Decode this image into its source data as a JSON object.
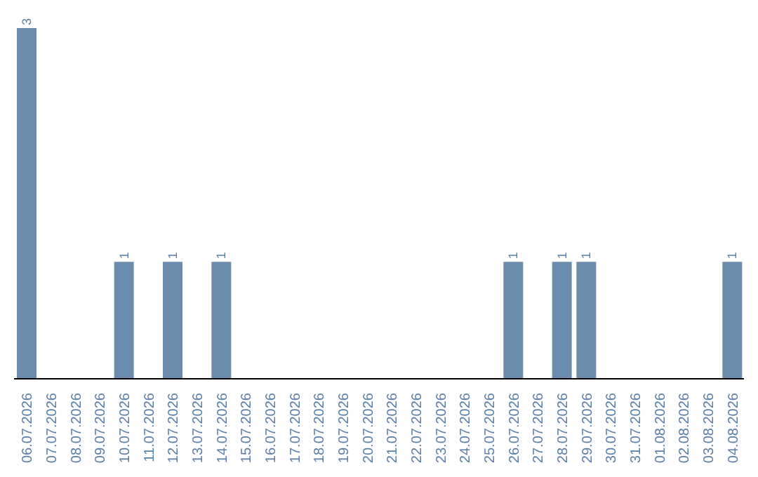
{
  "chart_data": {
    "type": "bar",
    "categories": [
      "06.07.2026",
      "07.07.2026",
      "08.07.2026",
      "09.07.2026",
      "10.07.2026",
      "11.07.2026",
      "12.07.2026",
      "13.07.2026",
      "14.07.2026",
      "15.07.2026",
      "16.07.2026",
      "17.07.2026",
      "18.07.2026",
      "19.07.2026",
      "20.07.2026",
      "21.07.2026",
      "22.07.2026",
      "23.07.2026",
      "24.07.2026",
      "25.07.2026",
      "26.07.2026",
      "27.07.2026",
      "28.07.2026",
      "29.07.2026",
      "30.07.2026",
      "31.07.2026",
      "01.08.2026",
      "02.08.2026",
      "03.08.2026",
      "04.08.2026"
    ],
    "values": [
      3,
      0,
      0,
      0,
      1,
      0,
      1,
      0,
      1,
      0,
      0,
      0,
      0,
      0,
      0,
      0,
      0,
      0,
      0,
      0,
      1,
      0,
      1,
      1,
      0,
      0,
      0,
      0,
      0,
      1
    ],
    "value_labels": [
      "3",
      null,
      null,
      null,
      "1",
      null,
      "1",
      null,
      "1",
      null,
      null,
      null,
      null,
      null,
      null,
      null,
      null,
      null,
      null,
      null,
      "1",
      null,
      "1",
      "1",
      null,
      null,
      null,
      null,
      null,
      "1"
    ],
    "color": "#6b8cad"
  }
}
